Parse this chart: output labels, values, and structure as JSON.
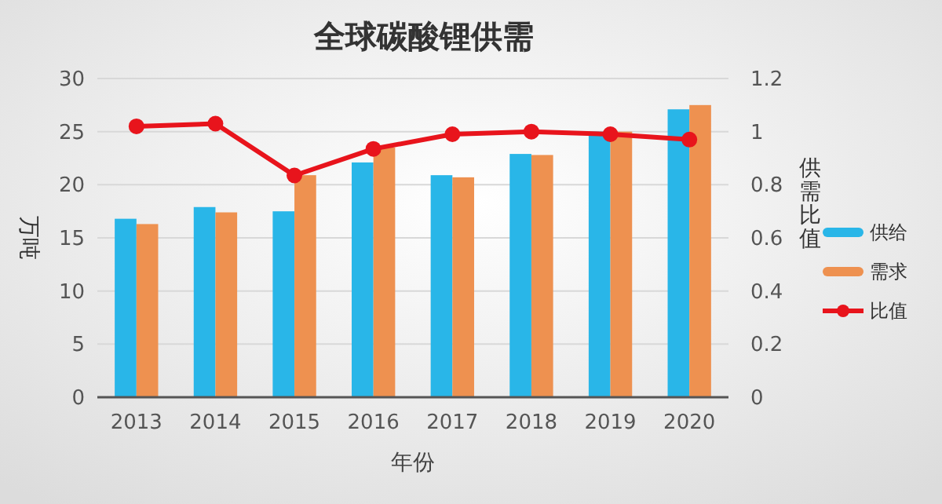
{
  "chart_data": {
    "type": "bar",
    "title": "全球碳酸锂供需",
    "xlabel": "年份",
    "ylabel": "万吨",
    "y2label": "供需比值",
    "categories": [
      "2013",
      "2014",
      "2015",
      "2016",
      "2017",
      "2018",
      "2019",
      "2020"
    ],
    "series": [
      {
        "name": "供给",
        "color": "#29b6e8",
        "values": [
          16.8,
          17.9,
          17.5,
          22.1,
          20.9,
          22.9,
          25,
          27.1
        ]
      },
      {
        "name": "需求",
        "color": "#ee9150",
        "values": [
          16.3,
          17.4,
          20.9,
          23.5,
          20.7,
          22.8,
          25,
          27.5
        ]
      },
      {
        "name": "比值",
        "type": "line",
        "axis": "y2",
        "color": "#e8141c",
        "marker": "circle",
        "values": [
          1.02,
          1.03,
          0.835,
          0.935,
          0.99,
          1.0,
          0.99,
          0.97
        ]
      }
    ],
    "ylim": [
      0,
      30
    ],
    "yticks": [
      0,
      5,
      10,
      15,
      20,
      25,
      30
    ],
    "y2lim": [
      0,
      1.2
    ],
    "y2ticks": [
      0,
      0.2,
      0.4,
      0.6,
      0.8,
      1,
      1.2
    ],
    "grid": "y",
    "legend": "right"
  }
}
